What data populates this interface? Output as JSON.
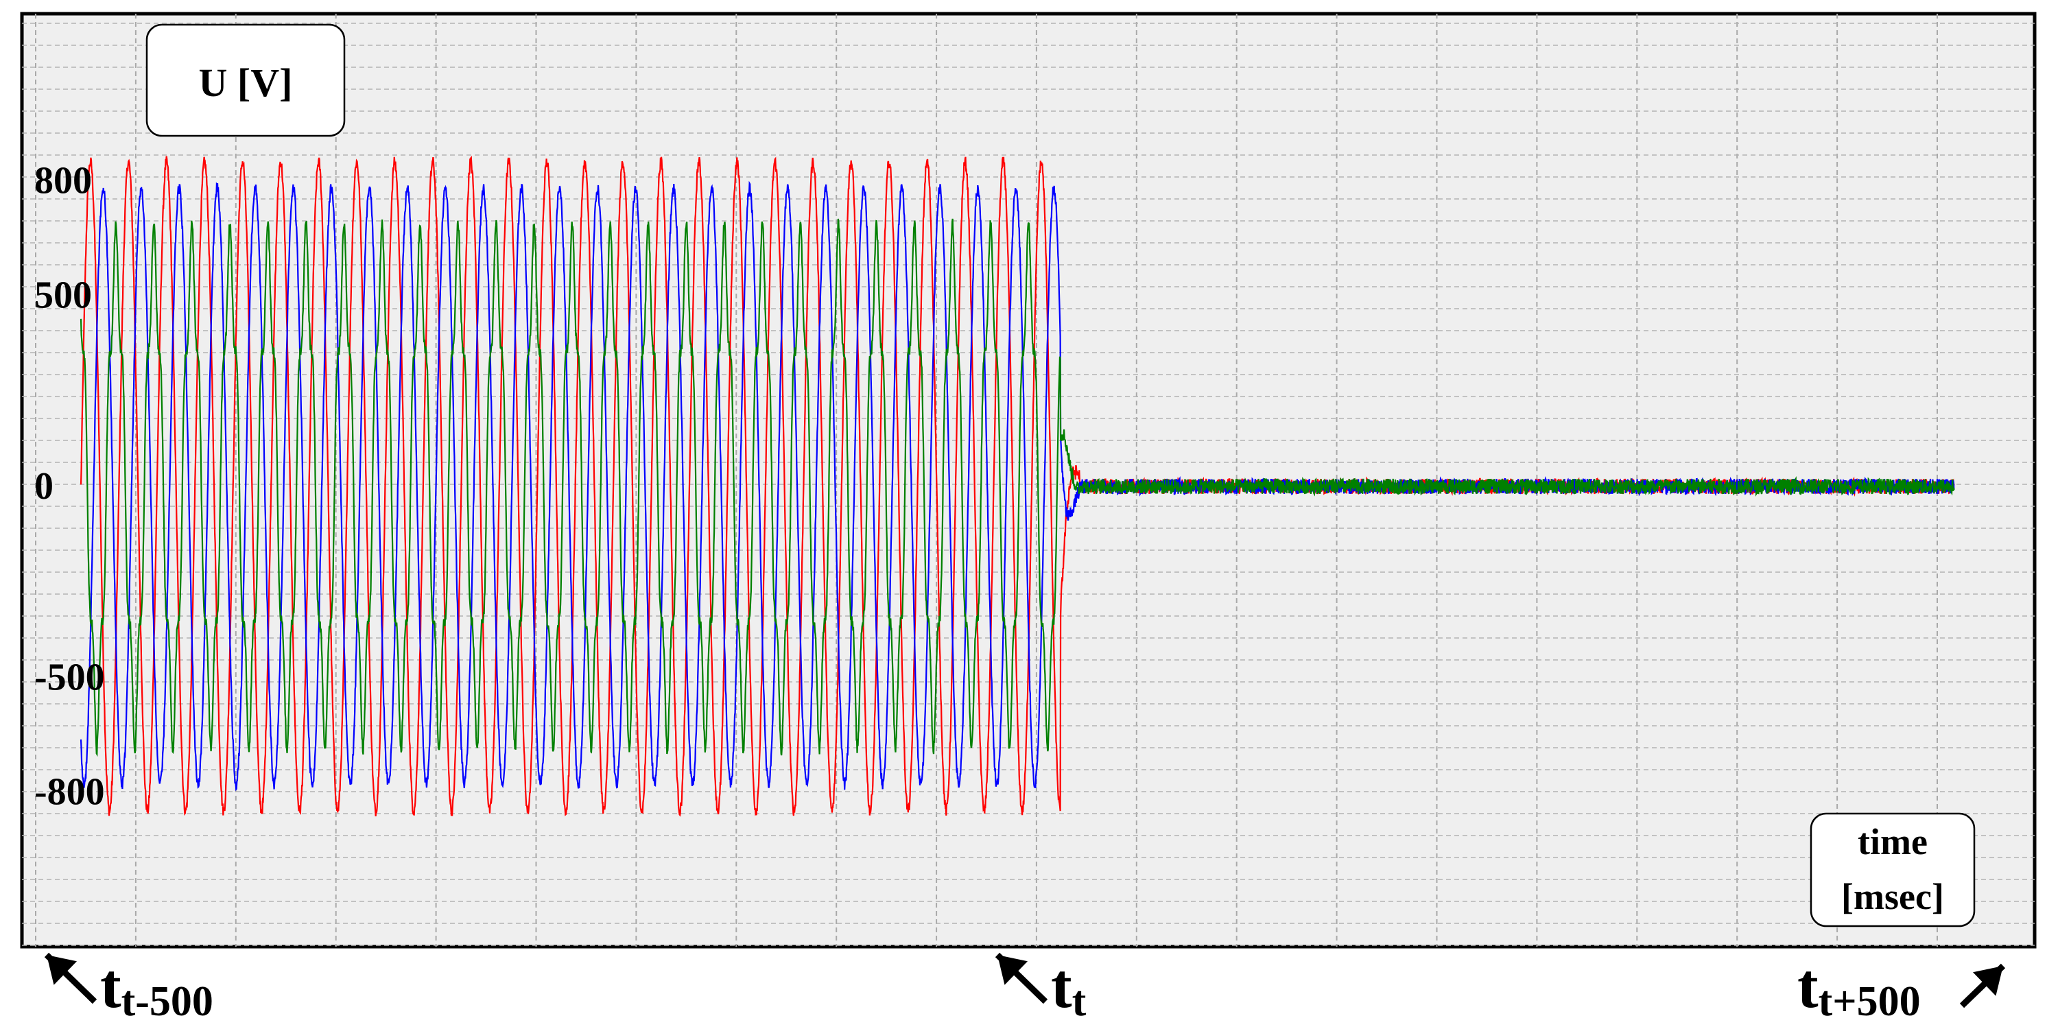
{
  "chart_data": {
    "type": "line",
    "title": "",
    "ylabel": "U [V]",
    "xlabel_lines": [
      "time",
      "[msec]"
    ],
    "y_ticks": [
      {
        "value": 800,
        "label": "800"
      },
      {
        "value": 500,
        "label": "500"
      },
      {
        "value": 0,
        "label": "0"
      },
      {
        "value": -500,
        "label": "-500"
      },
      {
        "value": -800,
        "label": "-800"
      }
    ],
    "ylim": [
      -900,
      900
    ],
    "x_unit": "ms",
    "xlim": [
      -500,
      500
    ],
    "x_markers": [
      {
        "t": -500,
        "base": "t",
        "sub": "t-500",
        "arrow": "up-left"
      },
      {
        "t": 0,
        "base": "t",
        "sub": "t",
        "arrow": "up-left"
      },
      {
        "t": 500,
        "base": "t",
        "sub": "t+500",
        "arrow": "up-right"
      }
    ],
    "grid": true,
    "legend": false,
    "signal": {
      "frequency_hz": 50,
      "fault_time_ms": 0,
      "data_end_ms": 485,
      "post_fault_noise_v": 20
    },
    "series": [
      {
        "color": "#ff0000",
        "amplitude_v": 850,
        "phase_deg": 0
      },
      {
        "color": "#0000ff",
        "amplitude_v": 780,
        "phase_deg": -120
      },
      {
        "color": "#008000",
        "amplitude_v": 600,
        "phase_deg": 120
      }
    ]
  }
}
